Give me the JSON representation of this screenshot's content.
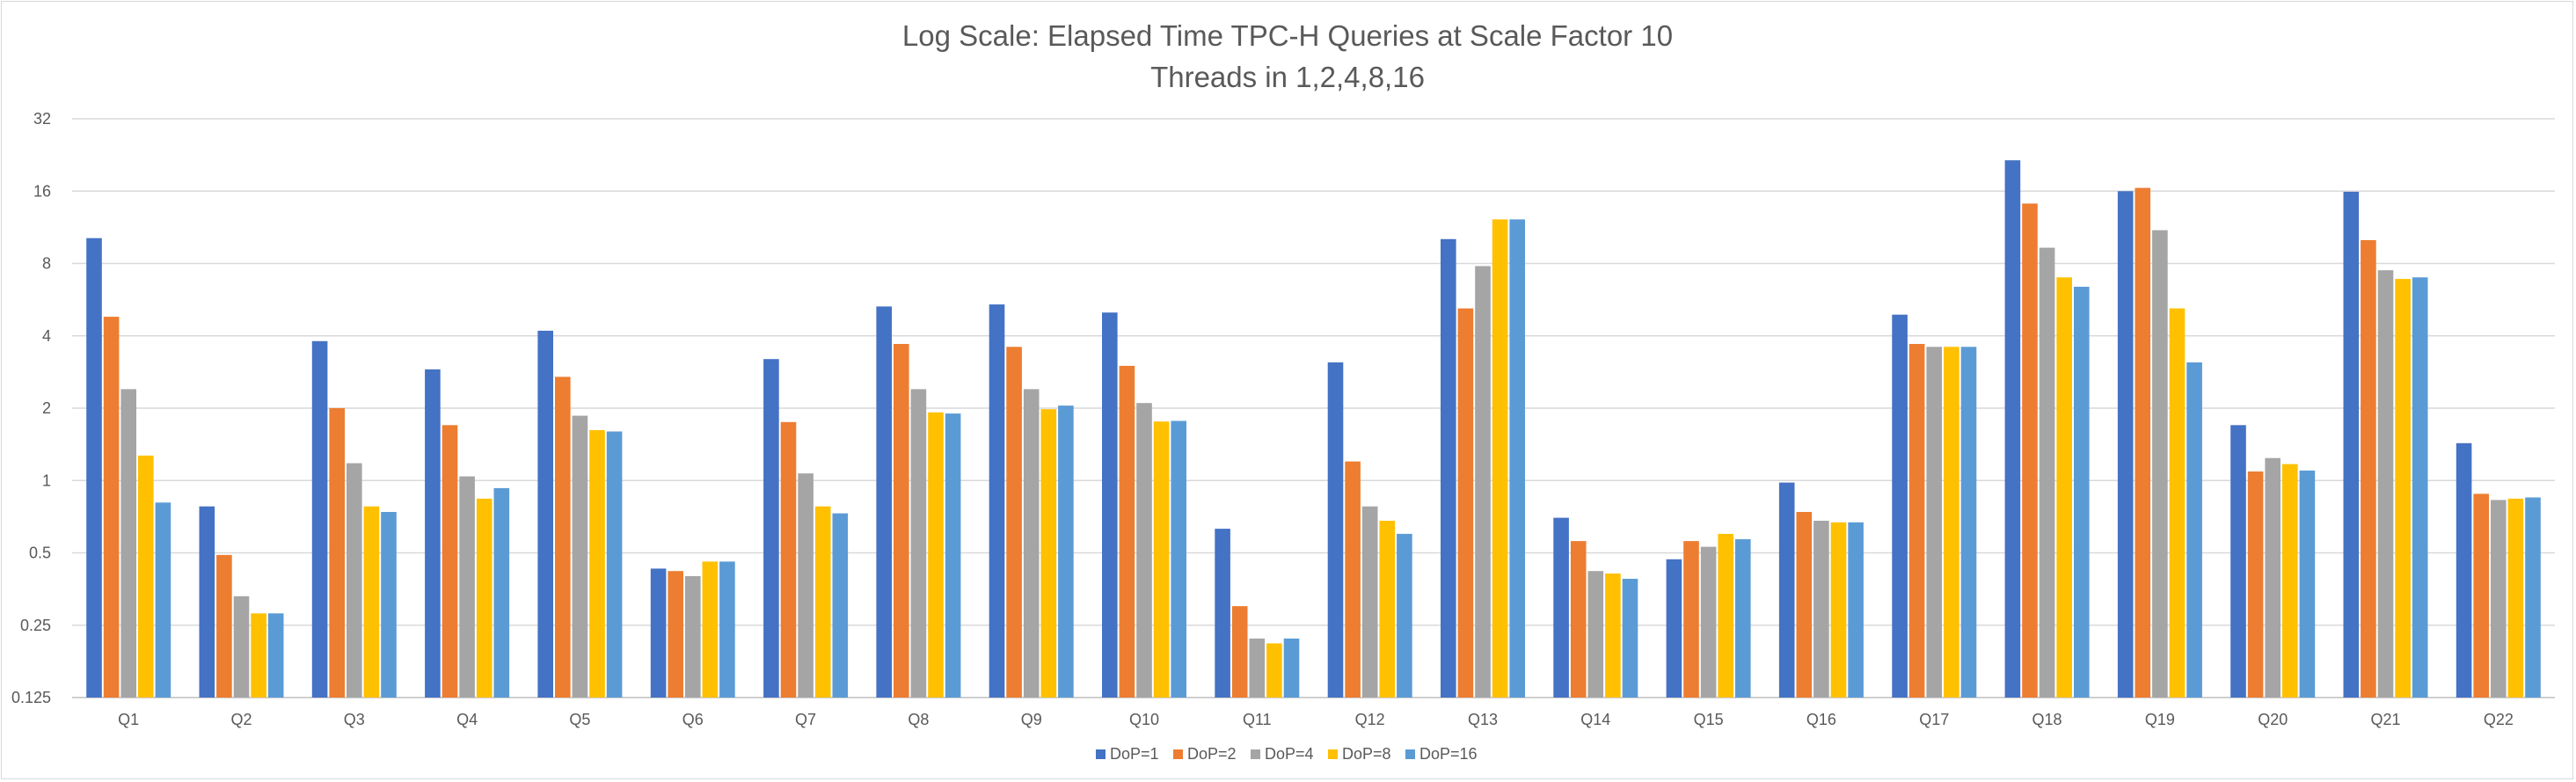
{
  "chart_data": {
    "type": "bar",
    "title": "Log  Scale:  Elapsed Time TPC-H Queries at Scale Factor 10",
    "subtitle": "Threads in 1,2,4,8,16",
    "xlabel": "",
    "ylabel": "",
    "y_scale": "log2",
    "ylim": [
      0.125,
      32
    ],
    "y_ticks": [
      0.125,
      0.25,
      0.5,
      1,
      2,
      4,
      8,
      16,
      32
    ],
    "y_tick_labels": [
      "0.125",
      "0.25",
      "0.5",
      "1",
      "2",
      "4",
      "8",
      "16",
      "32"
    ],
    "grid": true,
    "legend_position": "bottom",
    "categories": [
      "Q1",
      "Q2",
      "Q3",
      "Q4",
      "Q5",
      "Q6",
      "Q7",
      "Q8",
      "Q9",
      "Q10",
      "Q11",
      "Q12",
      "Q13",
      "Q14",
      "Q15",
      "Q16",
      "Q17",
      "Q18",
      "Q19",
      "Q20",
      "Q21",
      "Q22"
    ],
    "series": [
      {
        "name": "DoP=1",
        "color": "#4472c4",
        "values": [
          10.2,
          0.78,
          3.8,
          2.9,
          4.2,
          0.43,
          3.2,
          5.3,
          5.4,
          5.0,
          0.63,
          3.1,
          10.1,
          0.7,
          0.47,
          0.98,
          4.9,
          21.5,
          16.0,
          1.7,
          15.9,
          1.43
        ]
      },
      {
        "name": "DoP=2",
        "color": "#ed7d31",
        "values": [
          4.8,
          0.49,
          2.0,
          1.7,
          2.7,
          0.42,
          1.75,
          3.7,
          3.6,
          3.0,
          0.3,
          1.2,
          5.2,
          0.56,
          0.56,
          0.74,
          3.7,
          14.2,
          16.5,
          1.09,
          10.0,
          0.88
        ]
      },
      {
        "name": "DoP=4",
        "color": "#a5a5a5",
        "values": [
          2.4,
          0.33,
          1.18,
          1.04,
          1.86,
          0.4,
          1.07,
          2.4,
          2.4,
          2.1,
          0.22,
          0.78,
          7.8,
          0.42,
          0.53,
          0.68,
          3.6,
          9.3,
          11.0,
          1.24,
          7.5,
          0.83
        ]
      },
      {
        "name": "DoP=8",
        "color": "#ffc000",
        "values": [
          1.27,
          0.28,
          0.78,
          0.84,
          1.62,
          0.46,
          0.78,
          1.92,
          1.98,
          1.76,
          0.21,
          0.68,
          12.2,
          0.41,
          0.6,
          0.67,
          3.6,
          7.0,
          5.2,
          1.17,
          6.9,
          0.84
        ]
      },
      {
        "name": "DoP=16",
        "color": "#5b9bd5",
        "values": [
          0.81,
          0.28,
          0.74,
          0.93,
          1.6,
          0.46,
          0.73,
          1.9,
          2.05,
          1.77,
          0.22,
          0.6,
          12.2,
          0.39,
          0.57,
          0.67,
          3.6,
          6.4,
          3.1,
          1.1,
          7.0,
          0.85
        ]
      }
    ]
  }
}
